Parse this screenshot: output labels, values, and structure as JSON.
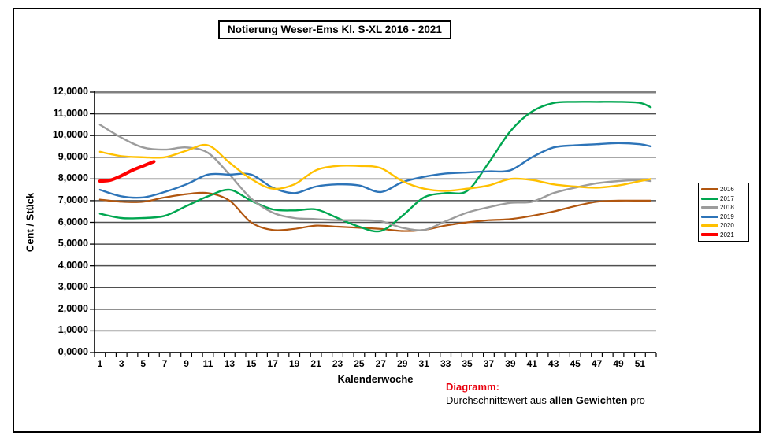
{
  "title": "Notierung Weser-Ems Kl. S-XL 2016 - 2021",
  "footer": {
    "diagramm_label": "Diagramm:",
    "text_prefix": "Durchschnittswert aus ",
    "text_bold": "allen Gewichten",
    "text_suffix": " pro"
  },
  "chart_data": {
    "type": "line",
    "title": "Notierung Weser-Ems Kl. S-XL 2016 - 2021",
    "xlabel": "Kalenderwoche",
    "ylabel": "Cent / Stück",
    "ylim": [
      0,
      12
    ],
    "ytick_step": 1,
    "ytick_labels": [
      "0,0000",
      "1,0000",
      "2,0000",
      "3,0000",
      "4,0000",
      "5,0000",
      "6,0000",
      "7,0000",
      "8,0000",
      "9,0000",
      "10,0000",
      "11,0000",
      "12,0000"
    ],
    "xticks": [
      1,
      3,
      5,
      7,
      9,
      11,
      13,
      15,
      17,
      19,
      21,
      23,
      25,
      27,
      29,
      31,
      33,
      35,
      37,
      39,
      41,
      43,
      45,
      47,
      49,
      51
    ],
    "x_range": [
      1,
      52
    ],
    "grid": "horizontal",
    "grid_color": "#4f4f4f",
    "top_grid_color": "#808080",
    "legend_position": "right",
    "legend_order": [
      "2016",
      "2017",
      "2018",
      "2019",
      "2020",
      "2021"
    ],
    "series": [
      {
        "name": "2016",
        "color": "#b1560f",
        "width": 2.2,
        "x": [
          1,
          3,
          5,
          7,
          9,
          11,
          13,
          15,
          17,
          19,
          21,
          23,
          25,
          27,
          29,
          31,
          33,
          35,
          37,
          39,
          41,
          43,
          45,
          47,
          49,
          51,
          52
        ],
        "values": [
          7.05,
          6.95,
          6.95,
          7.15,
          7.3,
          7.35,
          7.0,
          6.0,
          5.65,
          5.7,
          5.85,
          5.8,
          5.75,
          5.7,
          5.6,
          5.65,
          5.85,
          6.0,
          6.1,
          6.15,
          6.3,
          6.5,
          6.75,
          6.95,
          7.0,
          7.0,
          7.0
        ]
      },
      {
        "name": "2017",
        "color": "#00a650",
        "width": 2.4,
        "x": [
          1,
          3,
          5,
          7,
          9,
          11,
          13,
          15,
          17,
          19,
          21,
          23,
          25,
          27,
          29,
          31,
          33,
          35,
          37,
          39,
          41,
          43,
          45,
          47,
          49,
          51,
          52
        ],
        "values": [
          6.4,
          6.2,
          6.2,
          6.3,
          6.75,
          7.2,
          7.5,
          7.0,
          6.6,
          6.55,
          6.6,
          6.2,
          5.8,
          5.6,
          6.3,
          7.15,
          7.35,
          7.45,
          8.75,
          10.2,
          11.1,
          11.5,
          11.55,
          11.55,
          11.55,
          11.5,
          11.3
        ]
      },
      {
        "name": "2018",
        "color": "#9c9c9c",
        "width": 2.4,
        "x": [
          1,
          3,
          5,
          7,
          9,
          11,
          13,
          15,
          17,
          19,
          21,
          23,
          25,
          27,
          29,
          31,
          33,
          35,
          37,
          39,
          41,
          43,
          45,
          47,
          49,
          51,
          52
        ],
        "values": [
          10.5,
          9.9,
          9.45,
          9.35,
          9.45,
          9.2,
          8.2,
          7.1,
          6.45,
          6.2,
          6.15,
          6.1,
          6.1,
          6.05,
          5.75,
          5.65,
          6.05,
          6.45,
          6.7,
          6.9,
          6.95,
          7.35,
          7.6,
          7.8,
          7.9,
          7.95,
          7.9
        ]
      },
      {
        "name": "2019",
        "color": "#2d74b8",
        "width": 2.4,
        "x": [
          1,
          3,
          5,
          7,
          9,
          11,
          13,
          15,
          17,
          19,
          21,
          23,
          25,
          27,
          29,
          31,
          33,
          35,
          37,
          39,
          41,
          43,
          45,
          47,
          49,
          51,
          52
        ],
        "values": [
          7.5,
          7.2,
          7.15,
          7.4,
          7.75,
          8.2,
          8.2,
          8.2,
          7.6,
          7.35,
          7.65,
          7.75,
          7.7,
          7.4,
          7.85,
          8.1,
          8.25,
          8.3,
          8.35,
          8.4,
          9.0,
          9.45,
          9.55,
          9.6,
          9.65,
          9.6,
          9.5
        ]
      },
      {
        "name": "2020",
        "color": "#ffc000",
        "width": 2.4,
        "x": [
          1,
          3,
          5,
          7,
          9,
          11,
          13,
          15,
          17,
          19,
          21,
          23,
          25,
          27,
          29,
          31,
          33,
          35,
          37,
          39,
          41,
          43,
          45,
          47,
          49,
          51,
          52
        ],
        "values": [
          9.25,
          9.05,
          9.0,
          9.0,
          9.3,
          9.55,
          8.75,
          8.0,
          7.55,
          7.75,
          8.4,
          8.6,
          8.6,
          8.5,
          7.9,
          7.55,
          7.45,
          7.55,
          7.7,
          8.0,
          7.95,
          7.75,
          7.65,
          7.6,
          7.7,
          7.9,
          8.0
        ]
      },
      {
        "name": "2021",
        "color": "#fe0000",
        "width": 4.2,
        "x": [
          1,
          2,
          3,
          4,
          5,
          6
        ],
        "values": [
          7.9,
          7.95,
          8.15,
          8.4,
          8.6,
          8.8
        ]
      }
    ]
  }
}
